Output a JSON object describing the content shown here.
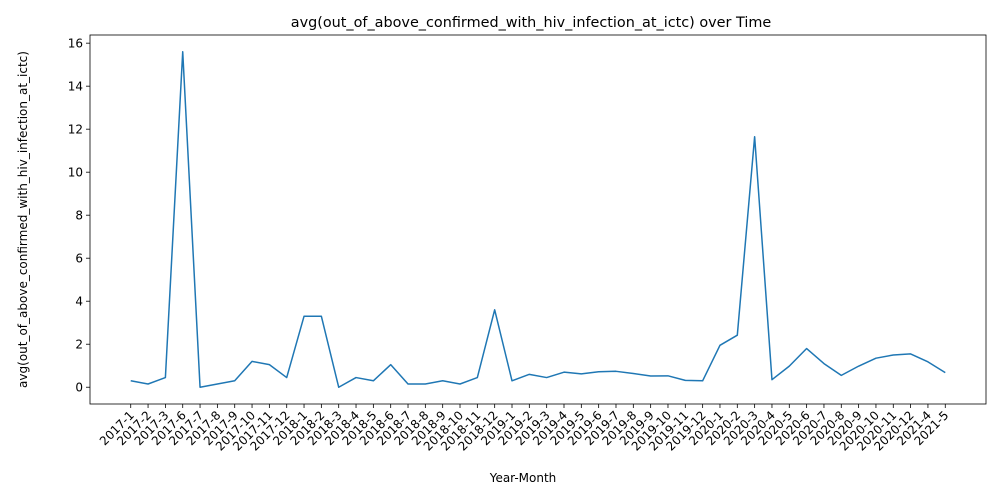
{
  "chart_data": {
    "type": "line",
    "title": "avg(out_of_above_confirmed_with_hiv_infection_at_ictc) over Time",
    "xlabel": "Year-Month",
    "ylabel": "avg(out_of_above_confirmed_with_hiv_infection_at_ictc)",
    "ylim": [
      -0.78,
      16.38
    ],
    "yticks": [
      0,
      2,
      4,
      6,
      8,
      10,
      12,
      14,
      16
    ],
    "grid": false,
    "legend": "none",
    "series": [
      {
        "color": "#1f77b4",
        "x": [
          "2017-1",
          "2017-2",
          "2017-3",
          "2017-6",
          "2017-7",
          "2017-8",
          "2017-9",
          "2017-10",
          "2017-11",
          "2017-12",
          "2018-1",
          "2018-2",
          "2018-3",
          "2018-4",
          "2018-5",
          "2018-6",
          "2018-7",
          "2018-8",
          "2018-9",
          "2018-10",
          "2018-11",
          "2018-12",
          "2019-1",
          "2019-2",
          "2019-3",
          "2019-4",
          "2019-5",
          "2019-6",
          "2019-7",
          "2019-8",
          "2019-9",
          "2019-10",
          "2019-11",
          "2019-12",
          "2020-1",
          "2020-2",
          "2020-3",
          "2020-4",
          "2020-5",
          "2020-6",
          "2020-7",
          "2020-8",
          "2020-9",
          "2020-10",
          "2020-11",
          "2020-12",
          "2021-4",
          "2021-5"
        ],
        "y": [
          0.3,
          0.15,
          0.45,
          15.6,
          0.0,
          0.15,
          0.3,
          1.2,
          1.05,
          0.45,
          3.3,
          3.3,
          0.0,
          0.45,
          0.3,
          1.05,
          0.15,
          0.15,
          0.3,
          0.15,
          0.45,
          3.6,
          0.3,
          0.6,
          0.45,
          0.7,
          0.62,
          0.72,
          0.74,
          0.64,
          0.52,
          0.53,
          0.32,
          0.3,
          1.95,
          2.42,
          11.65,
          0.35,
          0.98,
          1.8,
          1.1,
          0.55,
          0.98,
          1.35,
          1.5,
          1.55,
          1.18,
          0.68
        ]
      }
    ]
  }
}
